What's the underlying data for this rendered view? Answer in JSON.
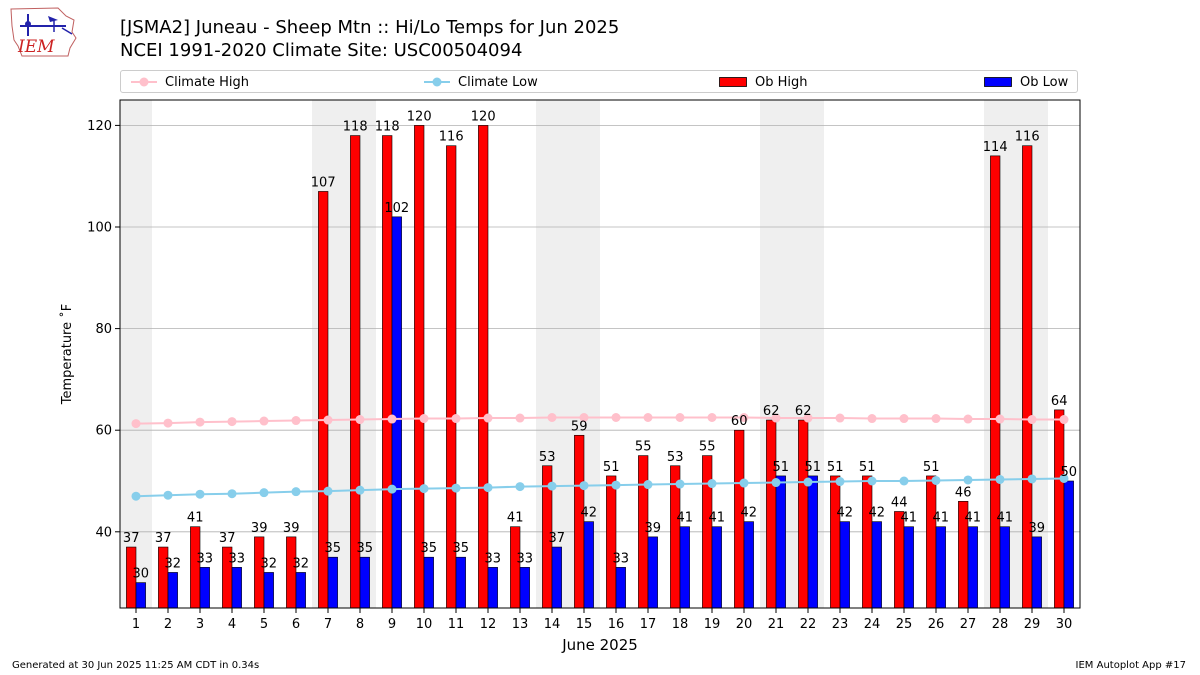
{
  "logo": {
    "text": "IEM",
    "name": "iem-logo"
  },
  "header": {
    "title_line1": "[JSMA2] Juneau - Sheep Mtn :: Hi/Lo Temps for Jun 2025",
    "title_line2": "NCEI 1991-2020 Climate Site: USC00504094"
  },
  "legend": {
    "items": [
      {
        "label": "Climate High",
        "kind": "line",
        "color": "#ffc0cb"
      },
      {
        "label": "Climate Low",
        "kind": "line",
        "color": "#87ceeb"
      },
      {
        "label": "Ob High",
        "kind": "bar",
        "color": "#ff0000"
      },
      {
        "label": "Ob Low",
        "kind": "bar",
        "color": "#0000ff"
      }
    ]
  },
  "footer": {
    "left": "Generated at 30 Jun 2025 11:25 AM CDT in 0.34s",
    "right": "IEM Autoplot App #17"
  },
  "chart_data": {
    "type": "bar",
    "xlabel": "June 2025",
    "ylabel": "Temperature ˚F",
    "ylim": [
      25,
      125
    ],
    "yticks": [
      40,
      60,
      80,
      100,
      120
    ],
    "x": [
      1,
      2,
      3,
      4,
      5,
      6,
      7,
      8,
      9,
      10,
      11,
      12,
      13,
      14,
      15,
      16,
      17,
      18,
      19,
      20,
      21,
      22,
      23,
      24,
      25,
      26,
      27,
      28,
      29,
      30
    ],
    "weekend_shading": [
      [
        1,
        1
      ],
      [
        7,
        8
      ],
      [
        14,
        15
      ],
      [
        21,
        22
      ],
      [
        28,
        29
      ]
    ],
    "grid": "horizontal",
    "legend_position": "top",
    "series": [
      {
        "name": "Ob High",
        "type": "bar",
        "color": "#ff0000",
        "values": [
          37,
          37,
          41,
          37,
          39,
          39,
          107,
          118,
          118,
          120,
          116,
          120,
          41,
          53,
          59,
          51,
          55,
          53,
          55,
          60,
          62,
          62,
          51,
          51,
          44,
          51,
          46,
          114,
          116,
          64
        ]
      },
      {
        "name": "Ob Low",
        "type": "bar",
        "color": "#0000ff",
        "values": [
          30,
          32,
          33,
          33,
          32,
          32,
          35,
          35,
          102,
          35,
          35,
          33,
          33,
          37,
          42,
          33,
          39,
          41,
          41,
          42,
          51,
          51,
          42,
          42,
          41,
          41,
          41,
          41,
          39,
          50
        ]
      },
      {
        "name": "Climate High",
        "type": "line",
        "color": "#ffc0cb",
        "values": [
          61.3,
          61.4,
          61.6,
          61.7,
          61.8,
          61.9,
          62.0,
          62.1,
          62.2,
          62.3,
          62.3,
          62.4,
          62.4,
          62.5,
          62.5,
          62.5,
          62.5,
          62.5,
          62.5,
          62.5,
          62.4,
          62.4,
          62.4,
          62.3,
          62.3,
          62.3,
          62.2,
          62.2,
          62.1,
          62.1
        ]
      },
      {
        "name": "Climate Low",
        "type": "line",
        "color": "#87ceeb",
        "values": [
          47.0,
          47.2,
          47.4,
          47.5,
          47.7,
          47.9,
          48.0,
          48.2,
          48.4,
          48.5,
          48.6,
          48.7,
          48.9,
          49.0,
          49.1,
          49.2,
          49.3,
          49.4,
          49.5,
          49.6,
          49.7,
          49.8,
          49.9,
          50.0,
          50.0,
          50.1,
          50.2,
          50.3,
          50.4,
          50.5
        ]
      }
    ]
  }
}
